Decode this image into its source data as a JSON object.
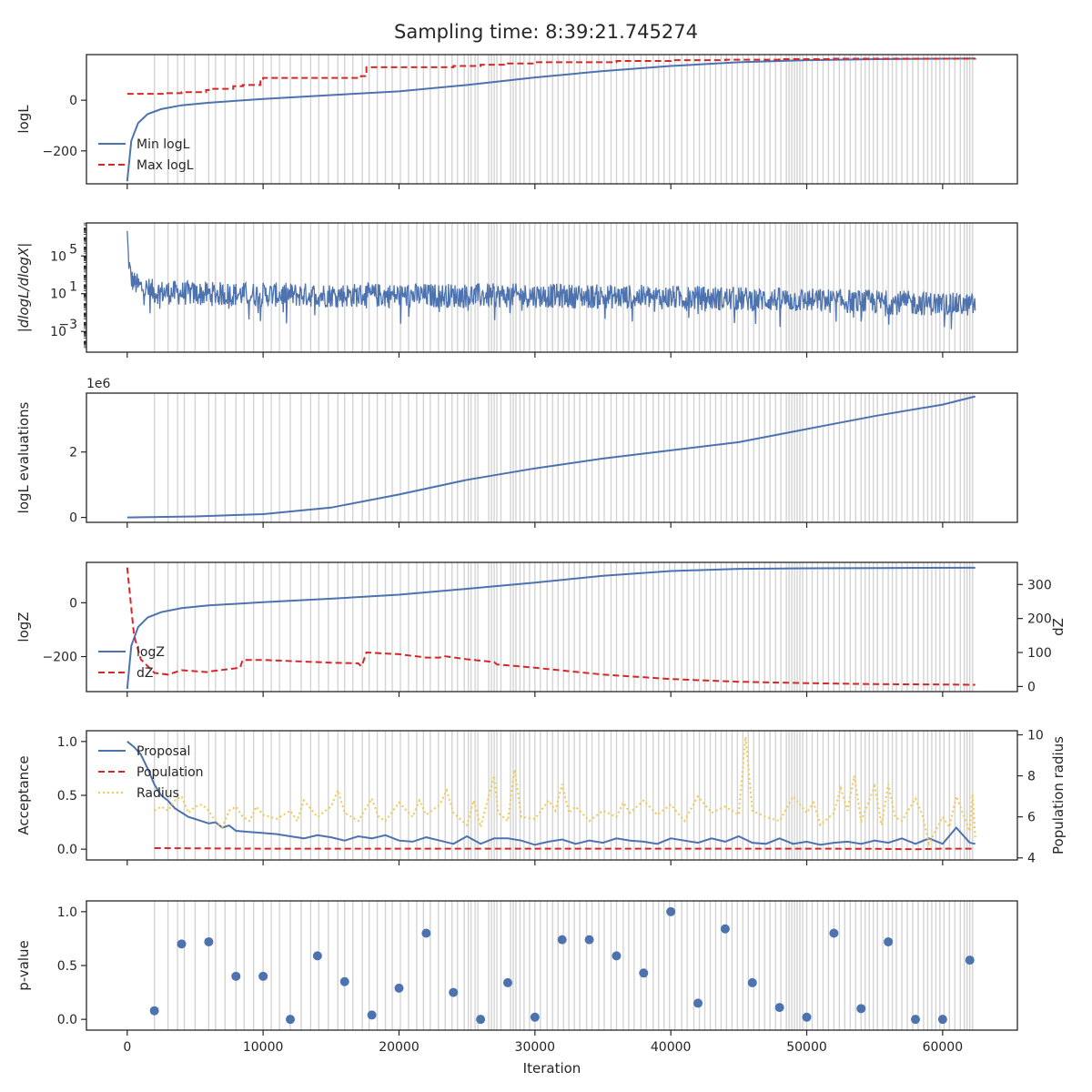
{
  "suptitle": "Sampling time: 8:39:21.745274",
  "colors": {
    "blue": "#4c72b0",
    "red": "#d62728",
    "yellow": "#f2c94c",
    "grey": "#d3d3d3",
    "axis": "#262626"
  },
  "chart_data": [
    {
      "type": "line",
      "ylabel": "logL",
      "xlim": [
        -3000,
        65500
      ],
      "ylim": [
        -330,
        180
      ],
      "yticks": [
        {
          "v": 0,
          "label": "0"
        },
        {
          "v": -200,
          "label": "−200"
        }
      ],
      "legend": "lower-left",
      "series": [
        {
          "name": "Min logL",
          "color": "blue",
          "dash": "solid",
          "x": [
            0,
            300,
            800,
            1500,
            2500,
            4000,
            6000,
            10000,
            15000,
            20000,
            25000,
            30000,
            35000,
            40000,
            45000,
            50000,
            55000,
            60000,
            62400
          ],
          "y": [
            -320,
            -160,
            -90,
            -55,
            -35,
            -20,
            -10,
            5,
            20,
            35,
            60,
            90,
            115,
            135,
            150,
            158,
            162,
            164,
            165
          ]
        },
        {
          "name": "Max logL",
          "color": "red",
          "dash": "dashed",
          "step": true,
          "x": [
            0,
            2000,
            2800,
            4000,
            5800,
            6000,
            7800,
            8500,
            9800,
            10000,
            17200,
            17600,
            24000,
            26000,
            28000,
            30000,
            36000,
            40000,
            44000,
            48000,
            52000,
            62400
          ],
          "y": [
            25,
            25,
            28,
            32,
            40,
            45,
            55,
            60,
            80,
            88,
            95,
            130,
            135,
            140,
            145,
            150,
            155,
            158,
            160,
            162,
            164,
            165
          ]
        }
      ]
    },
    {
      "type": "line",
      "ylabel": "|dlogL/dlogX|",
      "ylog": true,
      "xlim": [
        -3000,
        65500
      ],
      "ylim": [
        -5.2,
        8.5
      ],
      "yticks": [
        {
          "v": 5,
          "label": "10",
          "exp": "5"
        },
        {
          "v": 1,
          "label": "10",
          "exp": "1"
        },
        {
          "v": -3,
          "label": "10",
          "exp": "−3"
        }
      ],
      "series": [
        {
          "name": "",
          "color": "blue",
          "dash": "solid",
          "noisy": true,
          "x": [
            0,
            100,
            300,
            800,
            2000,
            5000,
            10000,
            20000,
            30000,
            40000,
            50000,
            58000,
            62400
          ],
          "center": [
            7.5,
            4.5,
            2.5,
            1.8,
            1.2,
            1.0,
            0.9,
            0.8,
            0.8,
            0.6,
            0.3,
            0.0,
            -0.2
          ],
          "spread": [
            0.5,
            1.0,
            1.2,
            1.3,
            1.3,
            1.3,
            1.3,
            1.3,
            1.3,
            1.3,
            1.3,
            1.3,
            1.2
          ]
        }
      ]
    },
    {
      "type": "line",
      "ylabel": "logL evaluations",
      "offset_label": "1e6",
      "xlim": [
        -3000,
        65500
      ],
      "ylim": [
        -0.15,
        3.8
      ],
      "yticks": [
        {
          "v": 2,
          "label": "2"
        },
        {
          "v": 0,
          "label": "0"
        }
      ],
      "series": [
        {
          "name": "",
          "color": "blue",
          "dash": "solid",
          "x": [
            0,
            5000,
            10000,
            15000,
            20000,
            25000,
            30000,
            35000,
            40000,
            45000,
            50000,
            55000,
            60000,
            62400
          ],
          "y": [
            0.0,
            0.03,
            0.1,
            0.3,
            0.7,
            1.15,
            1.5,
            1.8,
            2.05,
            2.3,
            2.7,
            3.1,
            3.45,
            3.7
          ]
        }
      ]
    },
    {
      "type": "line",
      "ylabel": "logZ",
      "ylabel_right": "dZ",
      "xlim": [
        -3000,
        65500
      ],
      "ylim": [
        -330,
        150
      ],
      "ylim_right": [
        -15,
        365
      ],
      "yticks": [
        {
          "v": 0,
          "label": "0"
        },
        {
          "v": -200,
          "label": "−200"
        }
      ],
      "yticks_right": [
        {
          "v": 300,
          "label": "300"
        },
        {
          "v": 200,
          "label": "200"
        },
        {
          "v": 100,
          "label": "100"
        },
        {
          "v": 0,
          "label": "0"
        }
      ],
      "legend": "lower-left",
      "series": [
        {
          "name": "logZ",
          "color": "blue",
          "dash": "solid",
          "axis": "left",
          "x": [
            0,
            300,
            800,
            1500,
            2500,
            4000,
            6000,
            10000,
            15000,
            20000,
            25000,
            30000,
            35000,
            40000,
            45000,
            50000,
            55000,
            62400
          ],
          "y": [
            -320,
            -160,
            -90,
            -55,
            -35,
            -20,
            -10,
            2,
            15,
            30,
            52,
            75,
            100,
            118,
            126,
            128,
            129,
            130
          ]
        },
        {
          "name": "dZ",
          "color": "red",
          "dash": "dashed",
          "axis": "right",
          "x": [
            0,
            500,
            1000,
            2000,
            3000,
            4000,
            6000,
            6200,
            8300,
            8500,
            10000,
            15000,
            17000,
            17200,
            17300,
            17600,
            20000,
            22000,
            23000,
            23200,
            25000,
            27000,
            27200,
            30000,
            35000,
            40000,
            45000,
            50000,
            55000,
            60000,
            62400
          ],
          "y": [
            350,
            150,
            80,
            40,
            35,
            48,
            42,
            45,
            55,
            78,
            78,
            70,
            68,
            60,
            65,
            100,
            95,
            85,
            85,
            90,
            80,
            72,
            65,
            55,
            35,
            22,
            14,
            10,
            7,
            6,
            5
          ]
        }
      ]
    },
    {
      "type": "line",
      "ylabel": "Acceptance",
      "ylabel_right": "Population radius",
      "xlim": [
        -3000,
        65500
      ],
      "ylim": [
        -0.1,
        1.1
      ],
      "ylim_right": [
        3.9,
        10.2
      ],
      "yticks": [
        {
          "v": 1.0,
          "label": "1.0"
        },
        {
          "v": 0.5,
          "label": "0.5"
        },
        {
          "v": 0.0,
          "label": "0.0"
        }
      ],
      "yticks_right": [
        {
          "v": 10,
          "label": "10"
        },
        {
          "v": 8,
          "label": "8"
        },
        {
          "v": 6,
          "label": "6"
        },
        {
          "v": 4,
          "label": "4"
        }
      ],
      "legend": "upper-left",
      "series": [
        {
          "name": "Proposal",
          "color": "blue",
          "dash": "solid",
          "axis": "left",
          "x": [
            0,
            500,
            1000,
            1500,
            2000,
            2500,
            3000,
            3500,
            4000,
            4500,
            5000,
            5500,
            6000,
            6500,
            7000,
            7500,
            8000,
            9000,
            10000,
            11000,
            12000,
            13000,
            14000,
            15000,
            16000,
            17000,
            18000,
            19000,
            20000,
            21000,
            22000,
            23000,
            24000,
            25000,
            26000,
            27000,
            28000,
            29000,
            30000,
            31000,
            32000,
            33000,
            34000,
            35000,
            36000,
            37000,
            38000,
            39000,
            40000,
            41000,
            42000,
            43000,
            44000,
            45000,
            46000,
            47000,
            48000,
            49000,
            50000,
            51000,
            52000,
            53000,
            54000,
            55000,
            56000,
            57000,
            58000,
            59000,
            60000,
            61000,
            62000,
            62400
          ],
          "y": [
            1.0,
            0.95,
            0.88,
            0.75,
            0.6,
            0.5,
            0.45,
            0.38,
            0.34,
            0.3,
            0.28,
            0.26,
            0.24,
            0.25,
            0.2,
            0.22,
            0.17,
            0.16,
            0.15,
            0.14,
            0.12,
            0.1,
            0.13,
            0.11,
            0.08,
            0.12,
            0.1,
            0.13,
            0.08,
            0.07,
            0.11,
            0.08,
            0.05,
            0.12,
            0.05,
            0.1,
            0.1,
            0.08,
            0.04,
            0.07,
            0.09,
            0.05,
            0.08,
            0.06,
            0.1,
            0.08,
            0.07,
            0.05,
            0.1,
            0.08,
            0.06,
            0.1,
            0.07,
            0.12,
            0.06,
            0.05,
            0.1,
            0.05,
            0.07,
            0.04,
            0.06,
            0.07,
            0.05,
            0.08,
            0.06,
            0.1,
            0.05,
            0.1,
            0.05,
            0.2,
            0.06,
            0.05
          ]
        },
        {
          "name": "Population",
          "color": "red",
          "dash": "dashed",
          "axis": "left",
          "x": [
            2000,
            10000,
            20000,
            30000,
            40000,
            50000,
            55000,
            58000,
            60000,
            62400
          ],
          "y": [
            0.01,
            0.005,
            0.005,
            0.005,
            0.005,
            0.005,
            0.003,
            0.0,
            0.005,
            0.005
          ]
        },
        {
          "name": "Radius",
          "color": "yellow",
          "dash": "dotted",
          "axis": "right",
          "x": [
            2000,
            2500,
            3000,
            3500,
            4000,
            4500,
            5000,
            5500,
            6000,
            6500,
            7000,
            7500,
            8000,
            8500,
            9000,
            9500,
            10000,
            11000,
            12000,
            12500,
            13000,
            14000,
            15000,
            15500,
            16000,
            17000,
            18000,
            18500,
            19000,
            20000,
            21000,
            21500,
            22000,
            23000,
            23500,
            24000,
            25000,
            25500,
            26000,
            27000,
            27300,
            28000,
            28500,
            29000,
            30000,
            31000,
            31500,
            32000,
            32500,
            33000,
            34000,
            35000,
            36000,
            36500,
            37000,
            38000,
            39000,
            40000,
            41000,
            42000,
            43000,
            44000,
            45000,
            45500,
            46000,
            47000,
            48000,
            49000,
            50000,
            50500,
            51000,
            52000,
            52500,
            53000,
            53500,
            54000,
            55000,
            55500,
            56000,
            56500,
            57000,
            58000,
            58500,
            59000,
            60000,
            60500,
            61000,
            62000,
            62200,
            62400
          ],
          "y": [
            6.3,
            6.5,
            6.3,
            6.8,
            7.0,
            6.2,
            6.5,
            6.6,
            6.3,
            5.8,
            5.5,
            6.3,
            6.5,
            6.0,
            5.8,
            6.5,
            6.1,
            5.9,
            6.3,
            5.8,
            6.8,
            6.0,
            6.5,
            7.3,
            6.2,
            5.8,
            6.9,
            6.0,
            5.8,
            6.7,
            6.0,
            6.8,
            6.1,
            6.6,
            7.3,
            6.2,
            5.6,
            6.8,
            5.5,
            8.0,
            6.2,
            5.8,
            8.3,
            6.0,
            5.9,
            6.8,
            6.3,
            7.6,
            6.2,
            6.5,
            5.8,
            6.3,
            6.0,
            6.7,
            6.2,
            6.8,
            6.1,
            6.6,
            5.8,
            7.0,
            6.2,
            6.5,
            6.1,
            9.9,
            6.3,
            6.0,
            5.8,
            7.0,
            6.2,
            6.7,
            5.6,
            6.2,
            7.4,
            6.3,
            8.0,
            5.8,
            7.5,
            5.6,
            7.6,
            6.0,
            5.8,
            6.9,
            6.1,
            4.7,
            6.0,
            5.5,
            7.0,
            5.3,
            7.1,
            5.0
          ]
        }
      ]
    },
    {
      "type": "scatter",
      "ylabel": "p-value",
      "xlabel": "Iteration",
      "xlim": [
        -3000,
        65500
      ],
      "ylim": [
        -0.1,
        1.1
      ],
      "yticks": [
        {
          "v": 1.0,
          "label": "1.0"
        },
        {
          "v": 0.5,
          "label": "0.5"
        },
        {
          "v": 0.0,
          "label": "0.0"
        }
      ],
      "xticks": [
        {
          "v": 0,
          "label": "0"
        },
        {
          "v": 10000,
          "label": "10000"
        },
        {
          "v": 20000,
          "label": "20000"
        },
        {
          "v": 30000,
          "label": "30000"
        },
        {
          "v": 40000,
          "label": "40000"
        },
        {
          "v": 50000,
          "label": "50000"
        },
        {
          "v": 60000,
          "label": "60000"
        }
      ],
      "series": [
        {
          "name": "",
          "color": "blue",
          "x": [
            2000,
            4000,
            6000,
            8000,
            10000,
            12000,
            14000,
            16000,
            18000,
            20000,
            22000,
            24000,
            26000,
            28000,
            30000,
            32000,
            34000,
            36000,
            38000,
            40000,
            42000,
            44000,
            46000,
            48000,
            50000,
            52000,
            54000,
            56000,
            58000,
            60000,
            62000
          ],
          "y": [
            0.08,
            0.7,
            0.72,
            0.4,
            0.4,
            0.0,
            0.59,
            0.35,
            0.04,
            0.29,
            0.8,
            0.25,
            0.0,
            0.34,
            0.02,
            0.74,
            0.74,
            0.59,
            0.43,
            1.0,
            0.15,
            0.84,
            0.34,
            0.11,
            0.02,
            0.8,
            0.1,
            0.72,
            0.0,
            0.0,
            0.55
          ]
        }
      ]
    }
  ],
  "shared": {
    "xticks": [
      {
        "v": 0,
        "label": "0"
      },
      {
        "v": 10000,
        "label": "10000"
      },
      {
        "v": 20000,
        "label": "20000"
      },
      {
        "v": 30000,
        "label": "30000"
      },
      {
        "v": 40000,
        "label": "40000"
      },
      {
        "v": 50000,
        "label": "50000"
      },
      {
        "v": 60000,
        "label": "60000"
      }
    ],
    "update_lines": [
      2000,
      3000,
      3700,
      4200,
      5000,
      6000,
      6500,
      7200,
      8000,
      8600,
      9300,
      10000,
      10600,
      11200,
      12000,
      12800,
      13500,
      14100,
      14800,
      15500,
      16000,
      16600,
      17300,
      17800,
      18400,
      19000,
      19500,
      20100,
      20700,
      21300,
      21800,
      22300,
      22900,
      23400,
      23900,
      24300,
      24800,
      25100,
      25300,
      25600,
      25800,
      26600,
      26800,
      27000,
      27200,
      27500,
      28200,
      28400,
      28600,
      28900,
      29200,
      29600,
      30000,
      30400,
      30900,
      31300,
      31700,
      32100,
      32500,
      32900,
      33300,
      33800,
      34200,
      34700,
      35100,
      35600,
      36000,
      36500,
      36900,
      37300,
      37800,
      38200,
      38700,
      39100,
      39500,
      39900,
      40300,
      40800,
      41200,
      41700,
      42100,
      42500,
      42900,
      43300,
      43700,
      44100,
      44500,
      44900,
      45300,
      45700,
      46100,
      46500,
      46900,
      47300,
      47700,
      48100,
      48500,
      48700,
      48900,
      49100,
      49300,
      49500,
      49700,
      50000,
      50400,
      50800,
      51200,
      51600,
      52000,
      52400,
      52800,
      53200,
      53600,
      54000,
      54300,
      54600,
      54900,
      55200,
      55600,
      56000,
      56300,
      56600,
      57000,
      57400,
      57800,
      58200,
      58600,
      58900,
      59200,
      59500,
      59800,
      60100,
      60500,
      60900,
      61300,
      61600,
      61800,
      62000,
      62200
    ]
  }
}
